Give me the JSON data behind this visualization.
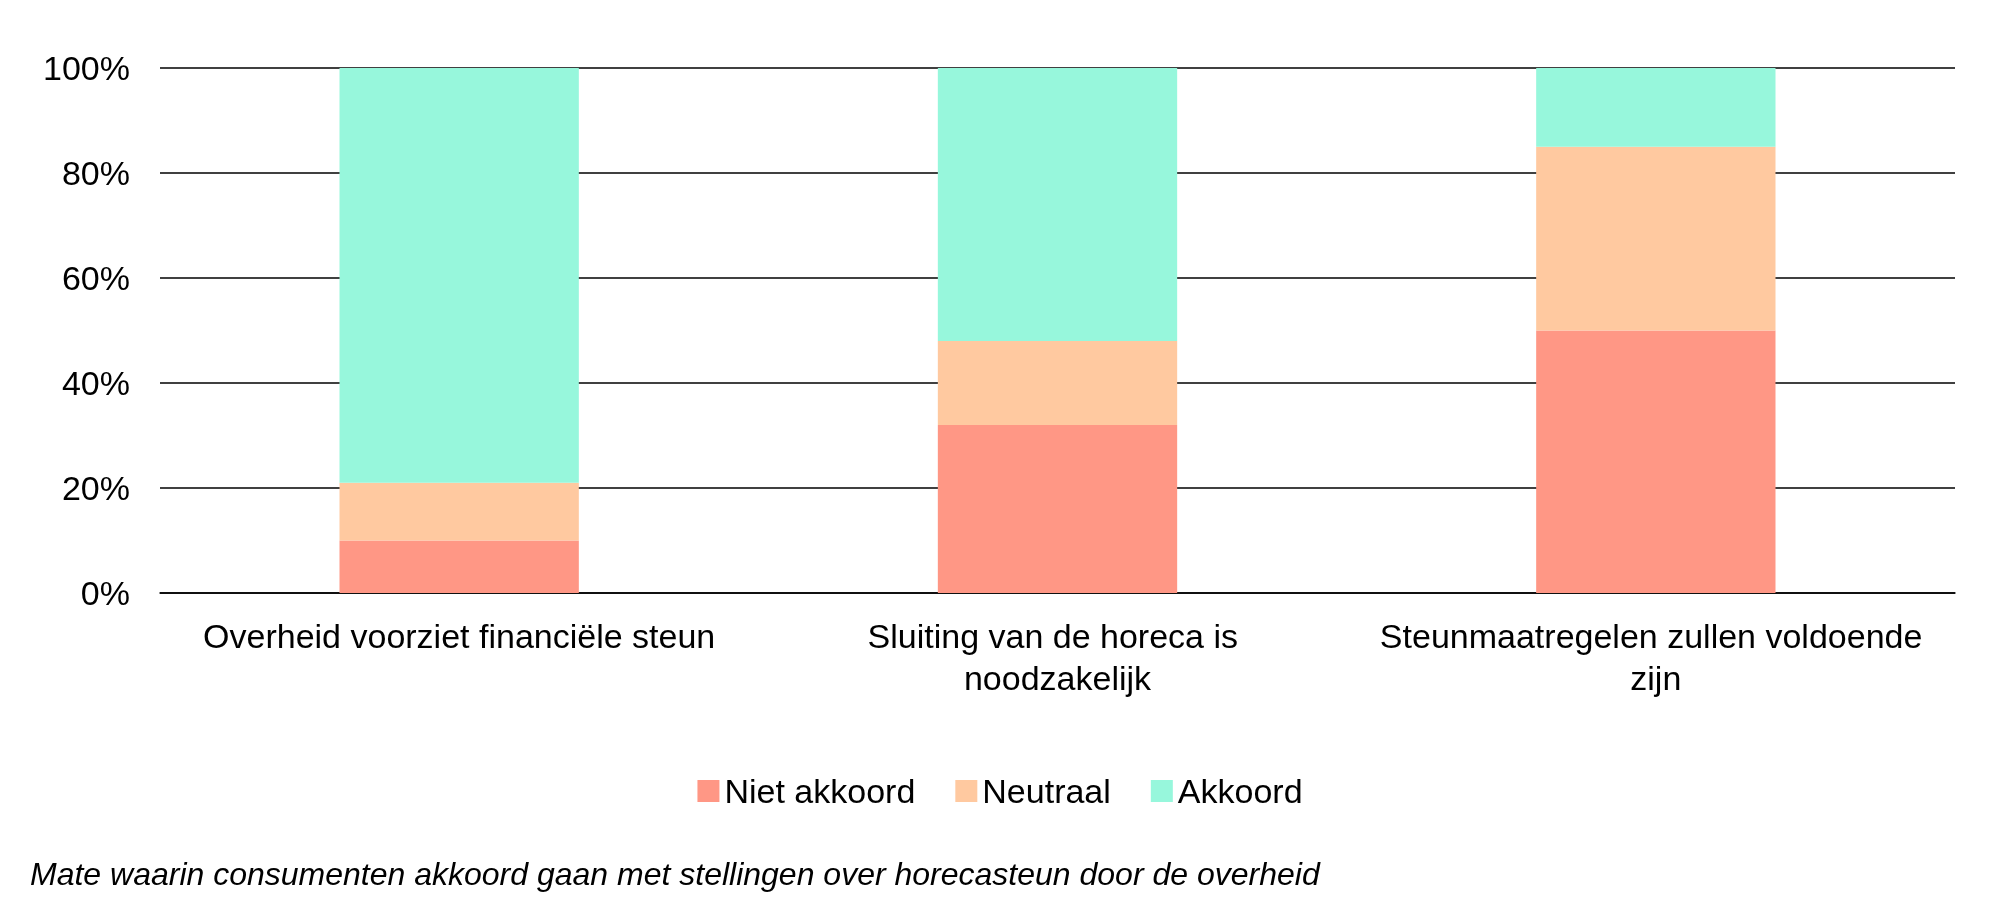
{
  "chart_data": {
    "type": "bar",
    "stacked": true,
    "categories": [
      "Overheid voorziet financiële steun",
      "Sluiting van de horeca is noodzakelijk",
      "Steunmaatregelen zullen voldoende zijn"
    ],
    "series": [
      {
        "name": "Niet akkoord",
        "color": "#ff9785",
        "values": [
          10,
          32,
          50
        ]
      },
      {
        "name": "Neutraal",
        "color": "#ffc9a0",
        "values": [
          11,
          16,
          35
        ]
      },
      {
        "name": "Akkoord",
        "color": "#97f7dc",
        "values": [
          79,
          52,
          15
        ]
      }
    ],
    "ylim": [
      0,
      100
    ],
    "yticks": [
      {
        "value": 0,
        "label": "0%"
      },
      {
        "value": 20,
        "label": "20%"
      },
      {
        "value": 40,
        "label": "40%"
      },
      {
        "value": 60,
        "label": "60%"
      },
      {
        "value": 80,
        "label": "80%"
      },
      {
        "value": 100,
        "label": "100%"
      }
    ],
    "grid": "y",
    "legend": "bottom",
    "annotations": [
      "Mate waarin consumenten akkoord gaan met stellingen over horecasteun door de overheid"
    ]
  }
}
